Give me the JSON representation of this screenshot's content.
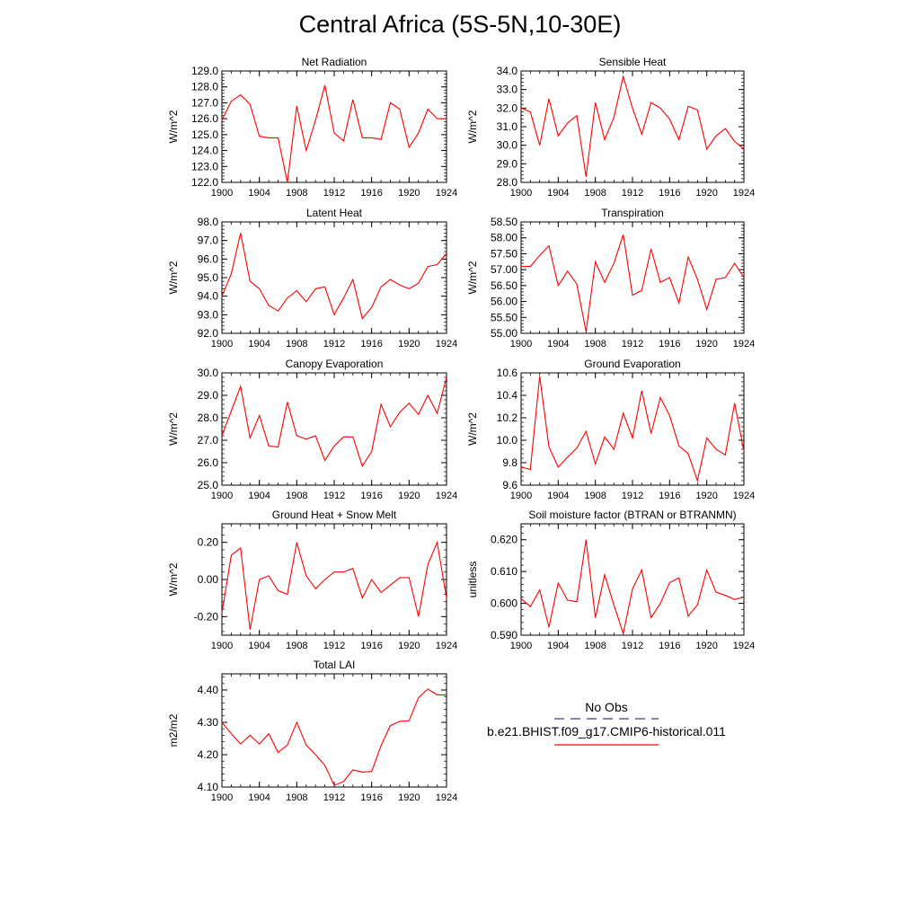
{
  "title": "Central Africa (5S-5N,10-30E)",
  "legend": {
    "obs_label": "No Obs",
    "obs_color": "#3b3b8f",
    "case_label": "b.e21.BHIST.f09_g17.CMIP6-historical.011",
    "case_color": "#ff0000"
  },
  "chart_data": [
    {
      "type": "line",
      "title": "Net Radiation",
      "ylabel": "W/m^2",
      "xlim": [
        1900,
        1924
      ],
      "ylim": [
        122.0,
        129.0
      ],
      "xticks": [
        "1900",
        "1904",
        "1908",
        "1912",
        "1916",
        "1920",
        "1924"
      ],
      "yticks": [
        "122.0",
        "123.0",
        "124.0",
        "125.0",
        "126.0",
        "127.0",
        "128.0",
        "129.0"
      ],
      "series": [
        {
          "color": "#ff0000",
          "x": [
            1900,
            1901,
            1902,
            1903,
            1904,
            1905,
            1906,
            1907,
            1908,
            1909,
            1910,
            1911,
            1912,
            1913,
            1914,
            1915,
            1916,
            1917,
            1918,
            1919,
            1920,
            1921,
            1922,
            1923,
            1924
          ],
          "values": [
            125.9,
            127.1,
            127.5,
            126.9,
            124.9,
            124.8,
            124.8,
            122.0,
            126.8,
            124.0,
            125.9,
            128.1,
            125.1,
            124.6,
            127.2,
            124.8,
            124.8,
            124.7,
            127.0,
            126.6,
            124.2,
            125.1,
            126.6,
            126.0,
            126.0
          ]
        }
      ]
    },
    {
      "type": "line",
      "title": "Sensible Heat",
      "ylabel": "W/m^2",
      "xlim": [
        1900,
        1924
      ],
      "ylim": [
        28.0,
        34.0
      ],
      "xticks": [
        "1900",
        "1904",
        "1908",
        "1912",
        "1916",
        "1920",
        "1924"
      ],
      "yticks": [
        "28.0",
        "29.0",
        "30.0",
        "31.0",
        "32.0",
        "33.0",
        "34.0"
      ],
      "series": [
        {
          "color": "#ff0000",
          "x": [
            1900,
            1901,
            1902,
            1903,
            1904,
            1905,
            1906,
            1907,
            1908,
            1909,
            1910,
            1911,
            1912,
            1913,
            1914,
            1915,
            1916,
            1917,
            1918,
            1919,
            1920,
            1921,
            1922,
            1923,
            1924
          ],
          "values": [
            32.0,
            31.8,
            30.0,
            32.5,
            30.5,
            31.2,
            31.6,
            28.3,
            32.3,
            30.3,
            31.5,
            33.7,
            32.0,
            30.6,
            32.3,
            32.0,
            31.4,
            30.3,
            32.1,
            31.9,
            29.8,
            30.5,
            30.9,
            30.2,
            29.8
          ]
        }
      ]
    },
    {
      "type": "line",
      "title": "Latent Heat",
      "ylabel": "W/m^2",
      "xlim": [
        1900,
        1924
      ],
      "ylim": [
        92.0,
        98.0
      ],
      "xticks": [
        "1900",
        "1904",
        "1908",
        "1912",
        "1916",
        "1920",
        "1924"
      ],
      "yticks": [
        "92.0",
        "93.0",
        "94.0",
        "95.0",
        "96.0",
        "97.0",
        "98.0"
      ],
      "series": [
        {
          "color": "#ff0000",
          "x": [
            1900,
            1901,
            1902,
            1903,
            1904,
            1905,
            1906,
            1907,
            1908,
            1909,
            1910,
            1911,
            1912,
            1913,
            1914,
            1915,
            1916,
            1917,
            1918,
            1919,
            1920,
            1921,
            1922,
            1923,
            1924
          ],
          "values": [
            94.0,
            95.2,
            97.4,
            94.8,
            94.4,
            93.5,
            93.2,
            93.9,
            94.3,
            93.7,
            94.4,
            94.5,
            93.0,
            93.9,
            94.9,
            92.8,
            93.4,
            94.5,
            94.9,
            94.6,
            94.4,
            94.7,
            95.6,
            95.7,
            96.3
          ]
        }
      ]
    },
    {
      "type": "line",
      "title": "Transpiration",
      "ylabel": "W/m^2",
      "xlim": [
        1900,
        1924
      ],
      "ylim": [
        55.0,
        58.5
      ],
      "xticks": [
        "1900",
        "1904",
        "1908",
        "1912",
        "1916",
        "1920",
        "1924"
      ],
      "yticks": [
        "55.00",
        "55.50",
        "56.00",
        "56.50",
        "57.00",
        "57.50",
        "58.00",
        "58.50"
      ],
      "series": [
        {
          "color": "#ff0000",
          "x": [
            1900,
            1901,
            1902,
            1903,
            1904,
            1905,
            1906,
            1907,
            1908,
            1909,
            1910,
            1911,
            1912,
            1913,
            1914,
            1915,
            1916,
            1917,
            1918,
            1919,
            1920,
            1921,
            1922,
            1923,
            1924
          ],
          "values": [
            57.1,
            57.1,
            57.45,
            57.75,
            56.5,
            56.95,
            56.55,
            55.05,
            57.25,
            56.6,
            57.2,
            58.1,
            56.2,
            56.35,
            57.65,
            56.6,
            56.75,
            55.95,
            57.4,
            56.7,
            55.75,
            56.7,
            56.75,
            57.2,
            56.75
          ]
        }
      ]
    },
    {
      "type": "line",
      "title": "Canopy Evaporation",
      "ylabel": "W/m^2",
      "xlim": [
        1900,
        1924
      ],
      "ylim": [
        25.0,
        30.0
      ],
      "xticks": [
        "1900",
        "1904",
        "1908",
        "1912",
        "1916",
        "1920",
        "1924"
      ],
      "yticks": [
        "25.0",
        "26.0",
        "27.0",
        "28.0",
        "29.0",
        "30.0"
      ],
      "series": [
        {
          "color": "#ff0000",
          "x": [
            1900,
            1901,
            1902,
            1903,
            1904,
            1905,
            1906,
            1907,
            1908,
            1909,
            1910,
            1911,
            1912,
            1913,
            1914,
            1915,
            1916,
            1917,
            1918,
            1919,
            1920,
            1921,
            1922,
            1923,
            1924
          ],
          "values": [
            27.2,
            28.3,
            29.4,
            27.1,
            28.1,
            26.75,
            26.7,
            28.7,
            27.2,
            27.05,
            27.2,
            26.1,
            26.75,
            27.15,
            27.15,
            25.85,
            26.5,
            28.6,
            27.6,
            28.25,
            28.65,
            28.15,
            29.0,
            28.2,
            29.8
          ]
        }
      ]
    },
    {
      "type": "line",
      "title": "Ground Evaporation",
      "ylabel": "W/m^2",
      "xlim": [
        1900,
        1924
      ],
      "ylim": [
        9.6,
        10.6
      ],
      "xticks": [
        "1900",
        "1904",
        "1908",
        "1912",
        "1916",
        "1920",
        "1924"
      ],
      "yticks": [
        "9.6",
        "9.8",
        "10.0",
        "10.2",
        "10.4",
        "10.6"
      ],
      "series": [
        {
          "color": "#ff0000",
          "x": [
            1900,
            1901,
            1902,
            1903,
            1904,
            1905,
            1906,
            1907,
            1908,
            1909,
            1910,
            1911,
            1912,
            1913,
            1914,
            1915,
            1916,
            1917,
            1918,
            1919,
            1920,
            1921,
            1922,
            1923,
            1924
          ],
          "values": [
            9.76,
            9.74,
            10.57,
            9.94,
            9.76,
            9.85,
            9.93,
            10.08,
            9.79,
            10.03,
            9.92,
            10.24,
            10.02,
            10.44,
            10.06,
            10.38,
            10.22,
            9.95,
            9.88,
            9.64,
            10.02,
            9.92,
            9.87,
            10.33,
            9.9
          ]
        }
      ]
    },
    {
      "type": "line",
      "title": "Ground Heat + Snow Melt",
      "ylabel": "W/m^2",
      "xlim": [
        1900,
        1924
      ],
      "ylim": [
        -0.3,
        0.3
      ],
      "xticks": [
        "1900",
        "1904",
        "1908",
        "1912",
        "1916",
        "1920",
        "1924"
      ],
      "yticks": [
        "-0.20",
        "0.00",
        "0.20"
      ],
      "ytick_values": [
        -0.2,
        0.0,
        0.2
      ],
      "series": [
        {
          "color": "#ff0000",
          "x": [
            1900,
            1901,
            1902,
            1903,
            1904,
            1905,
            1906,
            1907,
            1908,
            1909,
            1910,
            1911,
            1912,
            1913,
            1914,
            1915,
            1916,
            1917,
            1918,
            1919,
            1920,
            1921,
            1922,
            1923,
            1924
          ],
          "values": [
            -0.18,
            0.13,
            0.17,
            -0.27,
            0.0,
            0.02,
            -0.06,
            -0.08,
            0.2,
            0.02,
            -0.05,
            0.0,
            0.04,
            0.04,
            0.06,
            -0.1,
            0.0,
            -0.07,
            -0.03,
            0.01,
            0.01,
            -0.2,
            0.08,
            0.2,
            -0.1
          ]
        }
      ]
    },
    {
      "type": "line",
      "title": "Soil moisture factor (BTRAN or BTRANMN)",
      "ylabel": "unitless",
      "xlim": [
        1900,
        1924
      ],
      "ylim": [
        0.59,
        0.625
      ],
      "xticks": [
        "1900",
        "1904",
        "1908",
        "1912",
        "1916",
        "1920",
        "1924"
      ],
      "yticks": [
        "0.590",
        "0.600",
        "0.610",
        "0.620"
      ],
      "ytick_values": [
        0.59,
        0.6,
        0.61,
        0.62
      ],
      "series": [
        {
          "color": "#ff0000",
          "x": [
            1900,
            1901,
            1902,
            1903,
            1904,
            1905,
            1906,
            1907,
            1908,
            1909,
            1910,
            1911,
            1912,
            1913,
            1914,
            1915,
            1916,
            1917,
            1918,
            1919,
            1920,
            1921,
            1922,
            1923,
            1924
          ],
          "values": [
            0.6015,
            0.599,
            0.6042,
            0.5925,
            0.6064,
            0.601,
            0.6005,
            0.62,
            0.5955,
            0.609,
            0.5995,
            0.5905,
            0.6045,
            0.6105,
            0.5955,
            0.6,
            0.6065,
            0.608,
            0.596,
            0.5995,
            0.6105,
            0.6035,
            0.6025,
            0.6012,
            0.602
          ]
        }
      ]
    },
    {
      "type": "line",
      "title": "Total LAI",
      "ylabel": "m2/m2",
      "xlim": [
        1900,
        1924
      ],
      "ylim": [
        4.1,
        4.45
      ],
      "xticks": [
        "1900",
        "1904",
        "1908",
        "1912",
        "1916",
        "1920",
        "1924"
      ],
      "yticks": [
        "4.10",
        "4.20",
        "4.30",
        "4.40"
      ],
      "ytick_values": [
        4.1,
        4.2,
        4.3,
        4.4
      ],
      "series": [
        {
          "color": "#ff0000",
          "x": [
            1900,
            1901,
            1902,
            1903,
            1904,
            1905,
            1906,
            1907,
            1908,
            1909,
            1910,
            1911,
            1912,
            1913,
            1914,
            1915,
            1916,
            1917,
            1918,
            1919,
            1920,
            1921,
            1922,
            1923,
            1924
          ],
          "values": [
            4.3,
            4.265,
            4.233,
            4.26,
            4.233,
            4.265,
            4.207,
            4.23,
            4.3,
            4.23,
            4.2,
            4.167,
            4.105,
            4.117,
            4.153,
            4.146,
            4.148,
            4.228,
            4.29,
            4.303,
            4.305,
            4.376,
            4.403,
            4.385,
            4.385
          ]
        }
      ]
    }
  ]
}
